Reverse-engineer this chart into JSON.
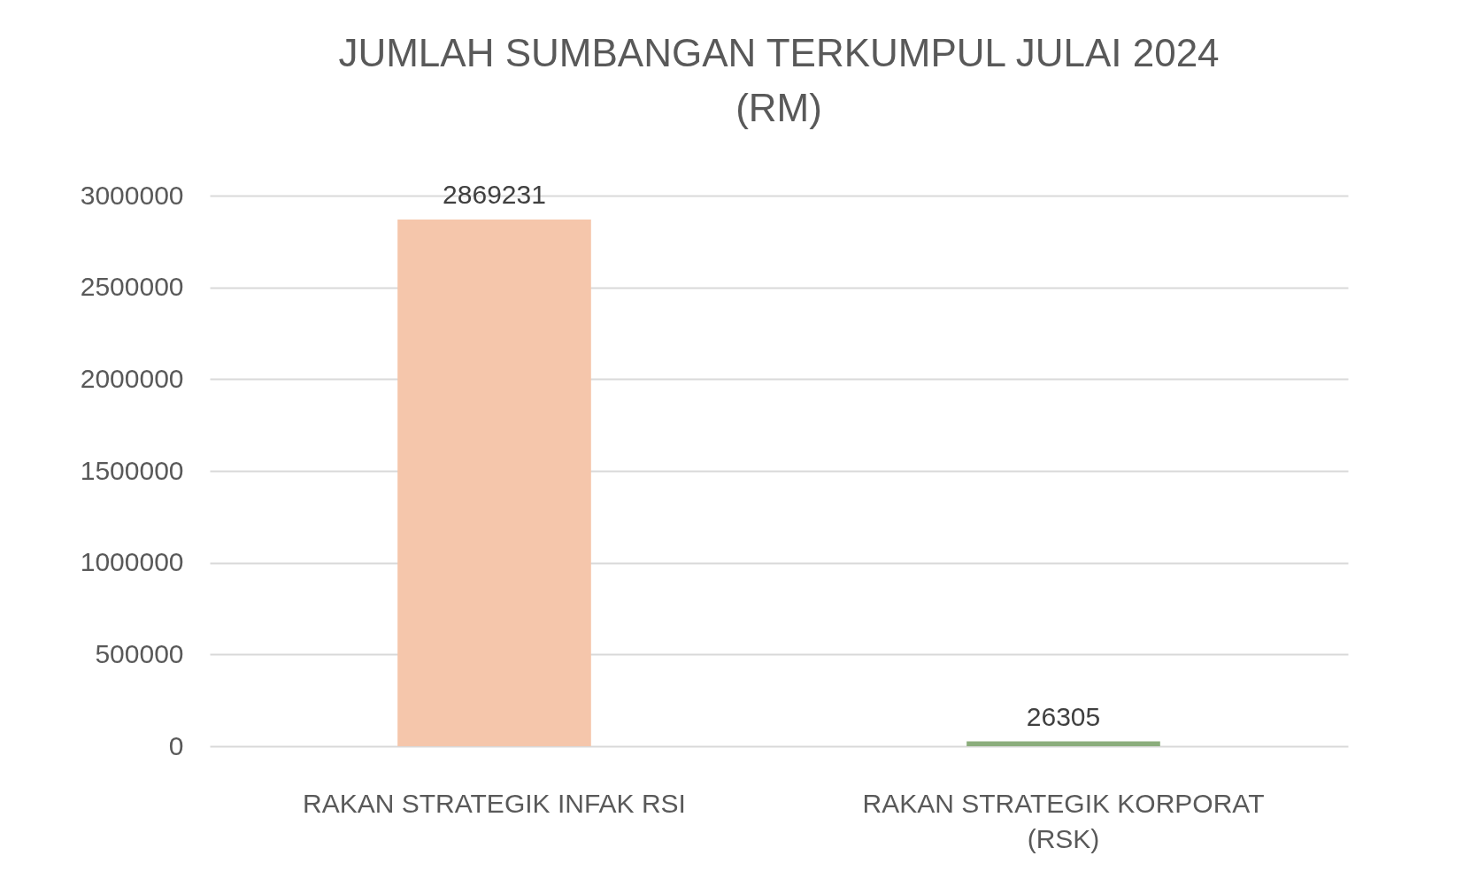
{
  "chart_data": {
    "type": "bar",
    "title": "JUMLAH SUMBANGAN TERKUMPUL JULAI 2024 (RM)",
    "categories": [
      "RAKAN STRATEGIK INFAK RSI",
      "RAKAN STRATEGIK KORPORAT (RSK)"
    ],
    "values": [
      2869231,
      26305
    ],
    "colors": [
      "#f5c6ab",
      "#8bad7c"
    ],
    "ylim": [
      0,
      3000000
    ],
    "yticks": [
      0,
      500000,
      1000000,
      1500000,
      2000000,
      2500000,
      3000000
    ],
    "grid": "y",
    "data_labels": true
  }
}
